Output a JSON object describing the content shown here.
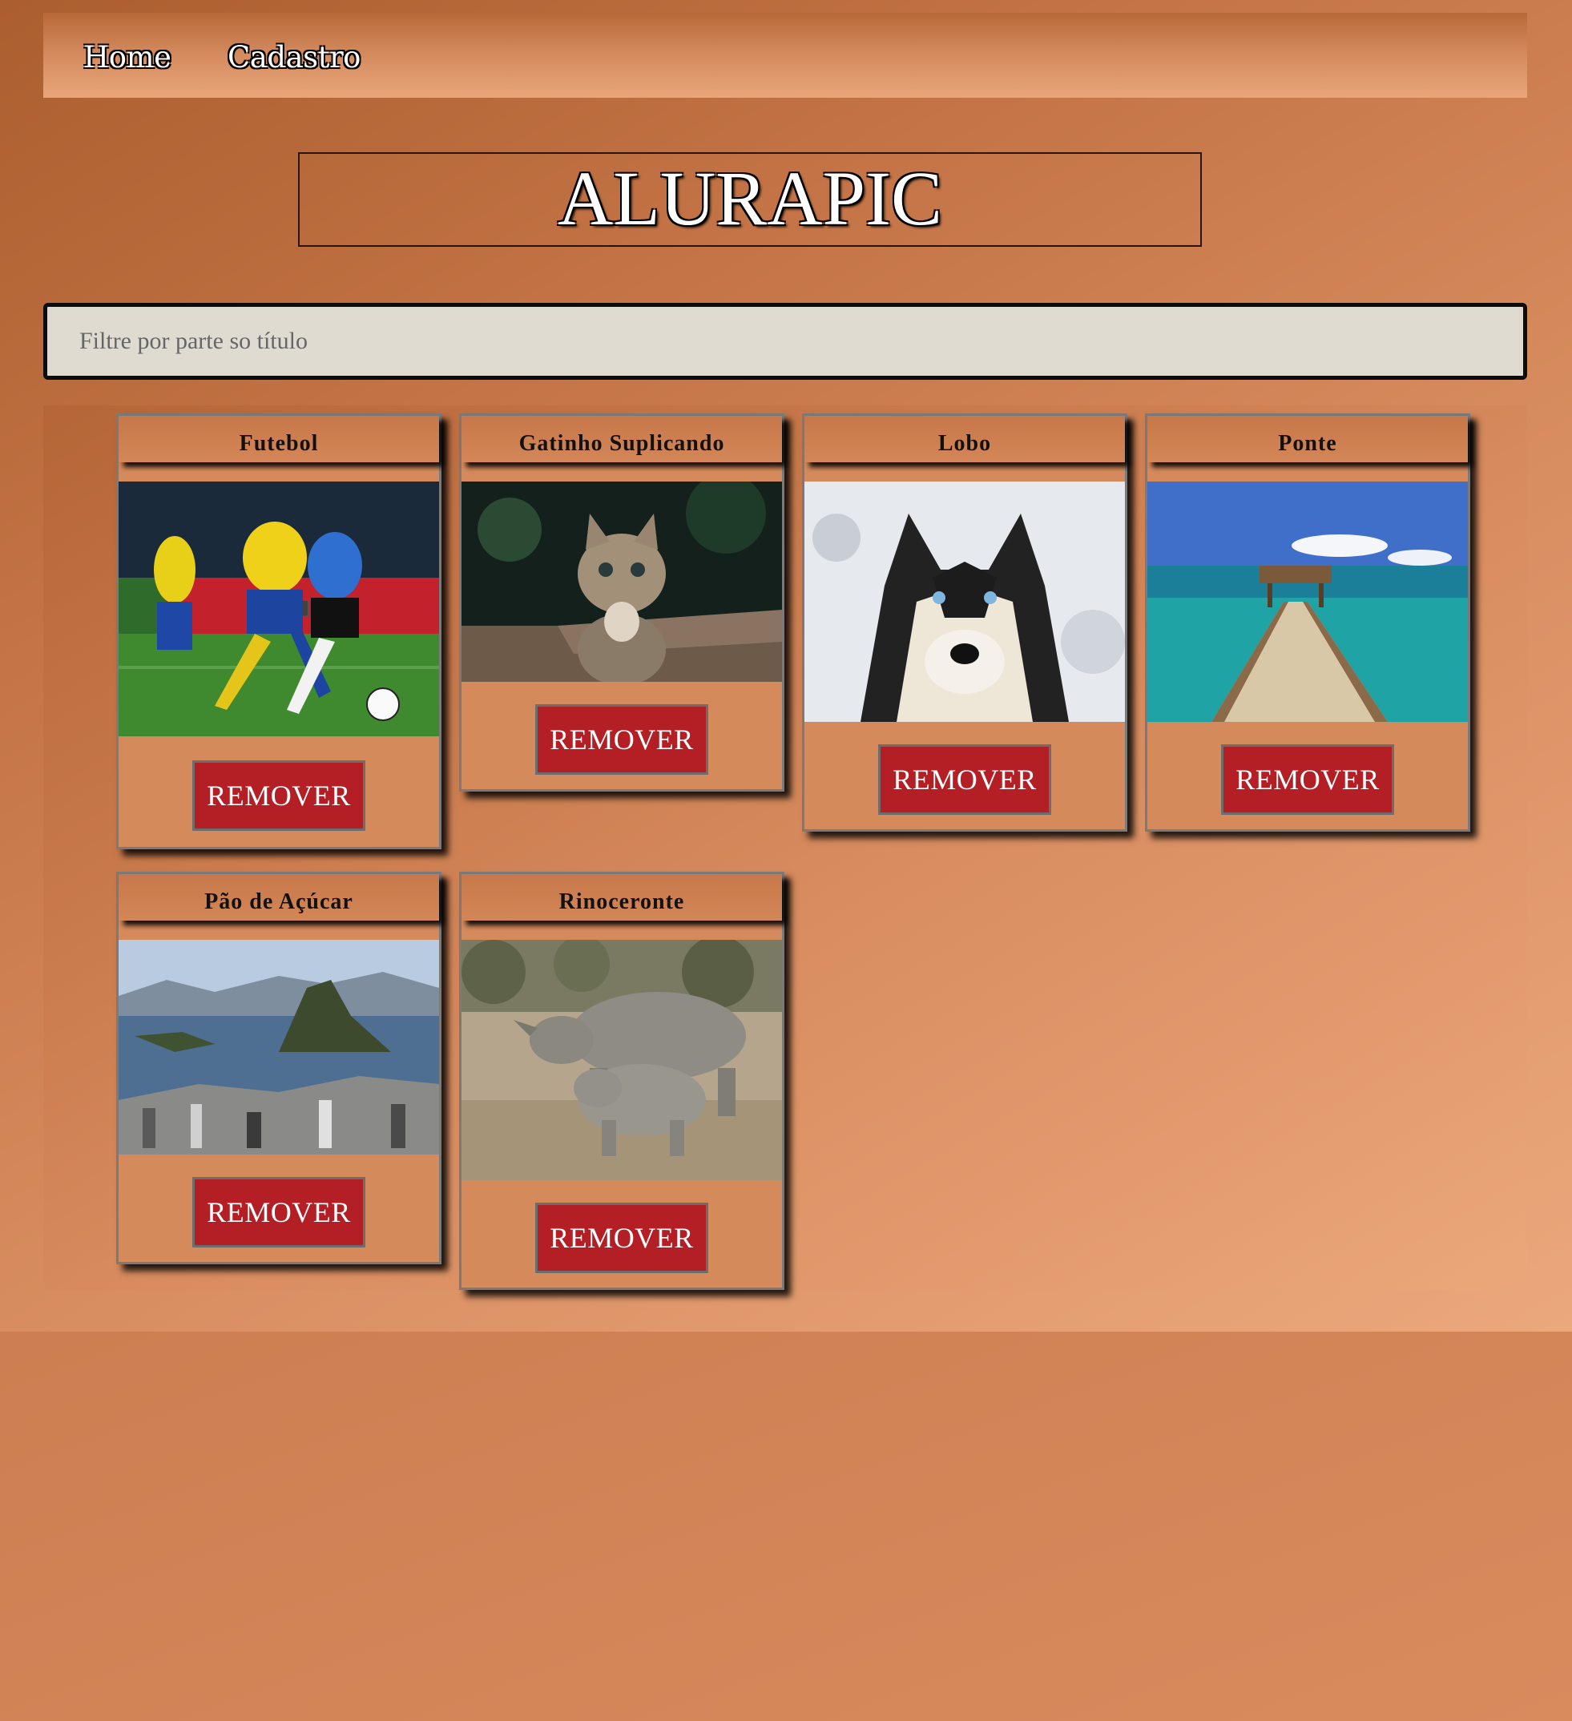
{
  "nav": {
    "items": [
      {
        "label": "Home"
      },
      {
        "label": "Cadastro"
      }
    ]
  },
  "header": {
    "title": "ALURAPIC"
  },
  "filter": {
    "placeholder": "Filtre por parte so título",
    "value": ""
  },
  "remove_label": "REMOVER",
  "photos": [
    {
      "title": "Futebol"
    },
    {
      "title": "Gatinho Suplicando"
    },
    {
      "title": "Lobo"
    },
    {
      "title": "Ponte"
    },
    {
      "title": "Pão de Açúcar"
    },
    {
      "title": "Rinoceronte"
    }
  ]
}
